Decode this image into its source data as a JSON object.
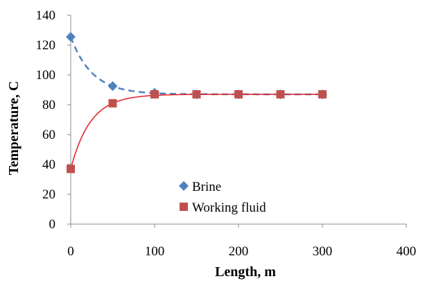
{
  "chart_data": {
    "type": "scatter",
    "title": "",
    "xlabel": "Length, m",
    "ylabel": "Temperature, C",
    "xlim": [
      0,
      400
    ],
    "ylim": [
      0,
      140
    ],
    "x_ticks": [
      "0",
      "100",
      "200",
      "300",
      "400"
    ],
    "y_ticks": [
      "0",
      "20",
      "40",
      "60",
      "80",
      "100",
      "120",
      "140"
    ],
    "grid": false,
    "legend_position": "lower-center",
    "series": [
      {
        "name": "Brine",
        "marker": "diamond",
        "line": "dashed-trend",
        "color": "#4F81BD",
        "x": [
          0,
          50,
          100,
          150,
          200,
          250,
          300
        ],
        "y": [
          125.5,
          92.5,
          88,
          87,
          87,
          87,
          87
        ]
      },
      {
        "name": "Working fluid",
        "marker": "square",
        "line": "solid-trend",
        "color": "#C0504D",
        "line_color": "#E3262B",
        "x": [
          0,
          50,
          100,
          150,
          200,
          250,
          300
        ],
        "y": [
          37,
          81,
          87,
          87,
          87,
          87,
          87
        ]
      }
    ]
  }
}
